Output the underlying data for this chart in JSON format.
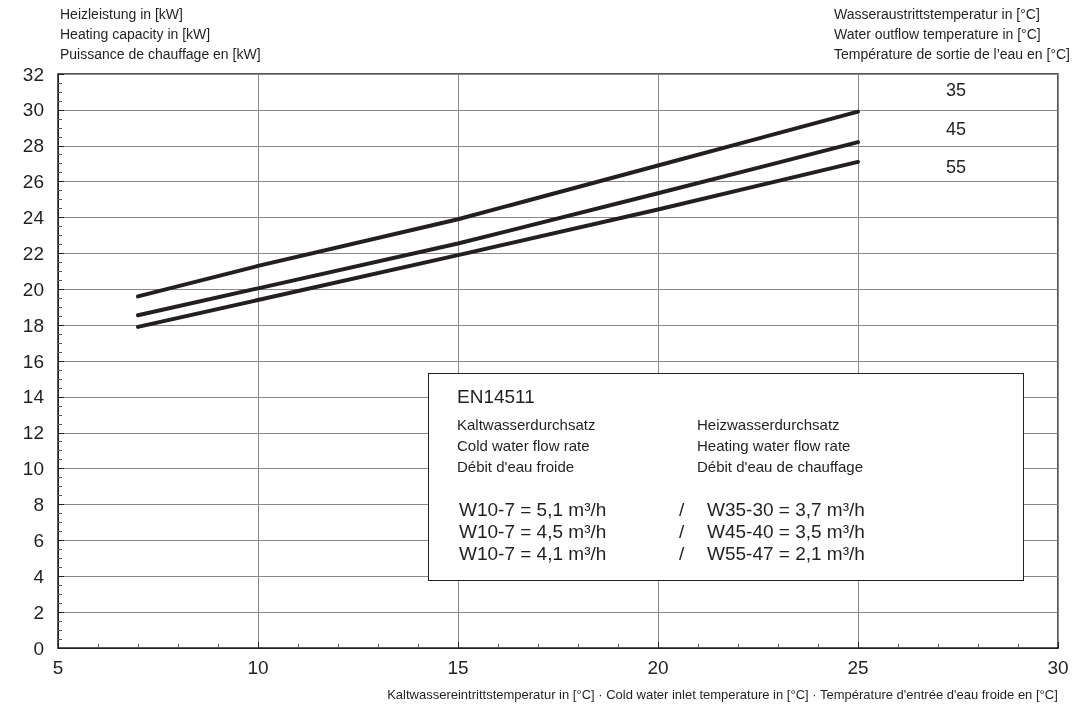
{
  "chart_data": {
    "type": "line",
    "ylabel": "Heizleistung in [kW]\nHeating capacity in [kW]\nPuissance de chauffage en [kW]",
    "xlabel": "Kaltwassereintrittstemperatur in [°C] · Cold water inlet temperature in [°C] · Température d'entrée d'eau froide en [°C]",
    "legend_title": "Wasseraustrittstemperatur in [°C]\nWater outflow temperature in [°C]\nTempérature de sortie de l’eau en [°C]",
    "x": [
      7,
      10,
      15,
      20,
      25
    ],
    "series": [
      {
        "name": "35",
        "color": "#231f20",
        "values": [
          19.6,
          21.3,
          23.9,
          26.9,
          29.9
        ]
      },
      {
        "name": "45",
        "color": "#231f20",
        "values": [
          18.55,
          20.05,
          22.55,
          25.35,
          28.2
        ]
      },
      {
        "name": "55",
        "color": "#231f20",
        "values": [
          17.9,
          19.4,
          21.9,
          24.45,
          27.1
        ]
      }
    ],
    "xlim": [
      5,
      30
    ],
    "xticks": [
      5,
      10,
      15,
      20,
      25,
      30
    ],
    "ylim": [
      0,
      32
    ],
    "yticks": [
      0,
      2,
      4,
      6,
      8,
      10,
      12,
      14,
      16,
      18,
      20,
      22,
      24,
      26,
      28,
      30,
      32
    ],
    "grid": true,
    "marker": "none",
    "line_style": "solid",
    "legend": false,
    "annotations": [
      "EN14511",
      "Kaltwasserdurchsatz\nCold water flow rate\nDébit d'eau froide",
      "Heizwasserdurchsatz\nHeating water flow rate\nDébit d'eau de chauffage",
      "W10-7 = 5,1 m³/h\nW10-7 = 4,5 m³/h\nW10-7 = 4,1 m³/h",
      "/\n/\n/",
      "W35-30 = 3,7 m³/h\nW45-40 = 3,5 m³/h\nW55-47 = 2,1 m³/h"
    ]
  }
}
